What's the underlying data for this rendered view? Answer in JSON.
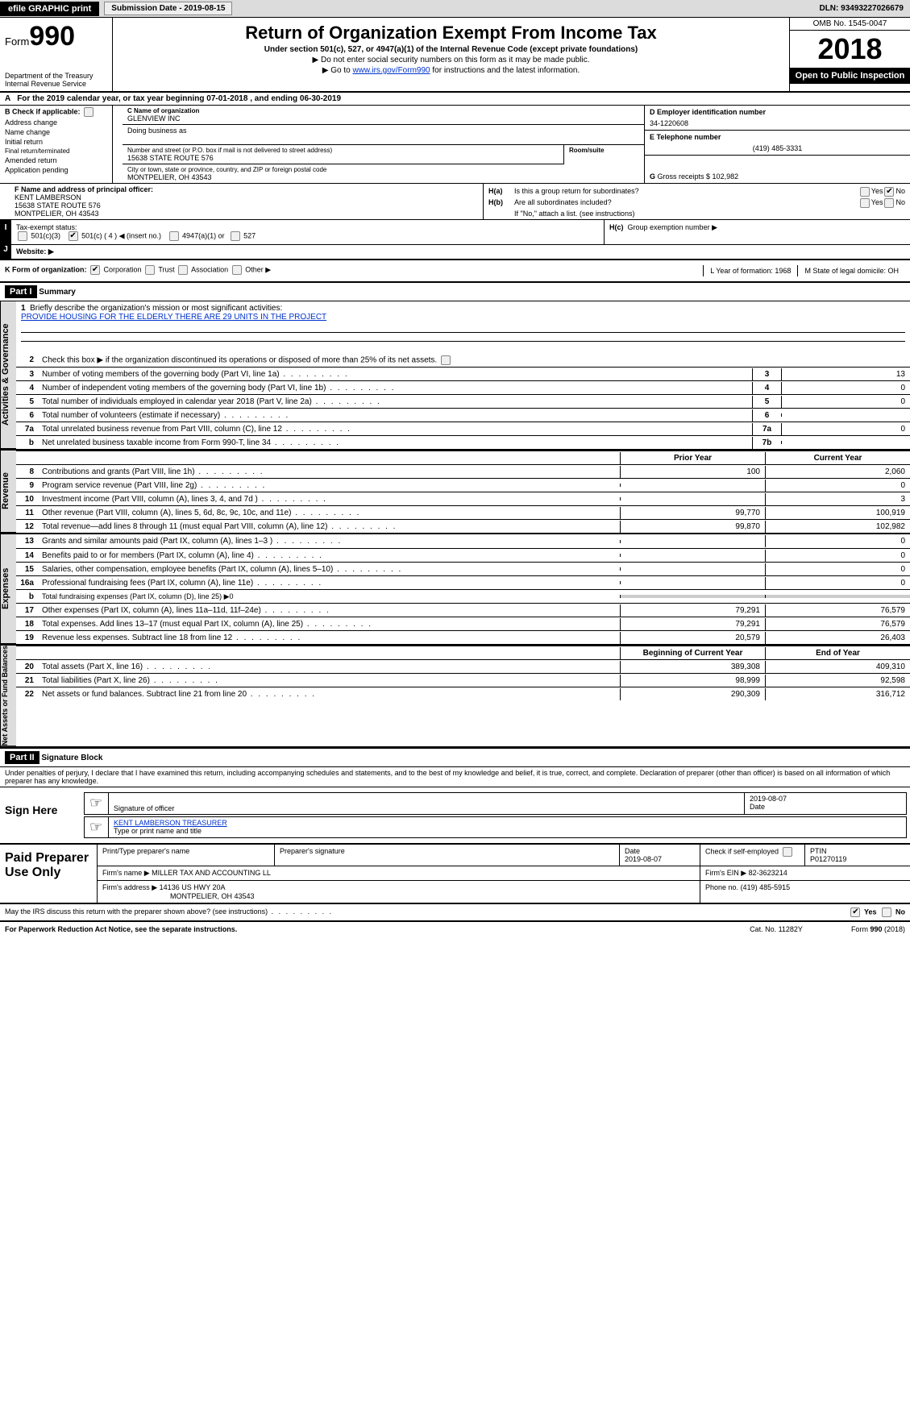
{
  "topbar": {
    "efile": "efile GRAPHIC print",
    "submission": "Submission Date - 2019-08-15",
    "dln": "DLN: 93493227026679"
  },
  "header": {
    "form_prefix": "Form",
    "form_num": "990",
    "dept1": "Department of the Treasury",
    "dept2": "Internal Revenue Service",
    "title": "Return of Organization Exempt From Income Tax",
    "subtitle": "Under section 501(c), 527, or 4947(a)(1) of the Internal Revenue Code (except private foundations)",
    "note1": "▶ Do not enter social security numbers on this form as it may be made public.",
    "note2_pre": "▶ Go to ",
    "note2_link": "www.irs.gov/Form990",
    "note2_post": " for instructions and the latest information.",
    "omb": "OMB No. 1545-0047",
    "year": "2018",
    "open": "Open to Public Inspection"
  },
  "rowA": "For the 2019 calendar year, or tax year beginning 07-01-2018     , and ending 06-30-2019",
  "secB": {
    "title": "Check if applicable:",
    "items": [
      "Address change",
      "Name change",
      "Initial return",
      "Final return/terminated",
      "Amended return",
      "Application pending"
    ]
  },
  "secC": {
    "name_lbl": "C Name of organization",
    "name": "GLENVIEW INC",
    "dba_lbl": "Doing business as",
    "addr_lbl": "Number and street (or P.O. box if mail is not delivered to street address)",
    "addr": "15638 STATE ROUTE 576",
    "room_lbl": "Room/suite",
    "city_lbl": "City or town, state or province, country, and ZIP or foreign postal code",
    "city": "MONTPELIER, OH  43543"
  },
  "secD": {
    "lbl": "D Employer identification number",
    "val": "34-1220608"
  },
  "secE": {
    "lbl": "E Telephone number",
    "val": "(419) 485-3331"
  },
  "secG": {
    "lbl": "G",
    "txt": "Gross receipts $ 102,982"
  },
  "secF": {
    "lbl": "F  Name and address of principal officer:",
    "name": "KENT LAMBERSON",
    "addr1": "15638 STATE ROUTE 576",
    "addr2": "MONTPELIER, OH  43543"
  },
  "secH": {
    "a_lbl": "H(a)",
    "a_txt": "Is this a group return for subordinates?",
    "b_lbl": "H(b)",
    "b_txt": "Are all subordinates included?",
    "b_note": "If \"No,\" attach a list. (see instructions)",
    "c_lbl": "H(c)",
    "c_txt": "Group exemption number ▶",
    "yes": "Yes",
    "no": "No"
  },
  "secI": {
    "lbl": "I",
    "txt": "Tax-exempt status:",
    "o1": "501(c)(3)",
    "o2": "501(c) ( 4 ) ◀ (insert no.)",
    "o3": "4947(a)(1) or",
    "o4": "527"
  },
  "secJ": {
    "lbl": "J",
    "txt": "Website: ▶"
  },
  "secK": {
    "txt": "K Form of organization:",
    "o1": "Corporation",
    "o2": "Trust",
    "o3": "Association",
    "o4": "Other ▶"
  },
  "secL": {
    "txt": "L Year of formation: 1968"
  },
  "secM": {
    "txt": "M State of legal domicile: OH"
  },
  "part1": {
    "hdr": "Part I",
    "title": "Summary"
  },
  "governance": {
    "tab": "Activities & Governance",
    "l1_lbl": "Briefly describe the organization's mission or most significant activities:",
    "l1_txt": "PROVIDE HOUSING FOR THE ELDERLY THERE ARE 29 UNITS IN THE PROJECT",
    "l2": "Check this box ▶      if the organization discontinued its operations or disposed of more than 25% of its net assets.",
    "rows": [
      {
        "n": "3",
        "lbl": "Number of voting members of the governing body (Part VI, line 1a)",
        "col": "3",
        "val": "13"
      },
      {
        "n": "4",
        "lbl": "Number of independent voting members of the governing body (Part VI, line 1b)",
        "col": "4",
        "val": "0"
      },
      {
        "n": "5",
        "lbl": "Total number of individuals employed in calendar year 2018 (Part V, line 2a)",
        "col": "5",
        "val": "0"
      },
      {
        "n": "6",
        "lbl": "Total number of volunteers (estimate if necessary)",
        "col": "6",
        "val": ""
      },
      {
        "n": "7a",
        "lbl": "Total unrelated business revenue from Part VIII, column (C), line 12",
        "col": "7a",
        "val": "0"
      },
      {
        "n": "b",
        "lbl": "Net unrelated business taxable income from Form 990-T, line 34",
        "col": "7b",
        "val": ""
      }
    ]
  },
  "colhdrs": {
    "prior": "Prior Year",
    "current": "Current Year",
    "boy": "Beginning of Current Year",
    "eoy": "End of Year"
  },
  "revenue": {
    "tab": "Revenue",
    "rows": [
      {
        "n": "8",
        "lbl": "Contributions and grants (Part VIII, line 1h)",
        "prior": "100",
        "curr": "2,060"
      },
      {
        "n": "9",
        "lbl": "Program service revenue (Part VIII, line 2g)",
        "prior": "",
        "curr": "0"
      },
      {
        "n": "10",
        "lbl": "Investment income (Part VIII, column (A), lines 3, 4, and 7d )",
        "prior": "",
        "curr": "3"
      },
      {
        "n": "11",
        "lbl": "Other revenue (Part VIII, column (A), lines 5, 6d, 8c, 9c, 10c, and 11e)",
        "prior": "99,770",
        "curr": "100,919"
      },
      {
        "n": "12",
        "lbl": "Total revenue—add lines 8 through 11 (must equal Part VIII, column (A), line 12)",
        "prior": "99,870",
        "curr": "102,982"
      }
    ]
  },
  "expenses": {
    "tab": "Expenses",
    "rows": [
      {
        "n": "13",
        "lbl": "Grants and similar amounts paid (Part IX, column (A), lines 1–3 )",
        "prior": "",
        "curr": "0"
      },
      {
        "n": "14",
        "lbl": "Benefits paid to or for members (Part IX, column (A), line 4)",
        "prior": "",
        "curr": "0"
      },
      {
        "n": "15",
        "lbl": "Salaries, other compensation, employee benefits (Part IX, column (A), lines 5–10)",
        "prior": "",
        "curr": "0"
      },
      {
        "n": "16a",
        "lbl": "Professional fundraising fees (Part IX, column (A), line 11e)",
        "prior": "",
        "curr": "0"
      },
      {
        "n": "b",
        "lbl": "Total fundraising expenses (Part IX, column (D), line 25) ▶0",
        "prior": "GRAY",
        "curr": "GRAY"
      },
      {
        "n": "17",
        "lbl": "Other expenses (Part IX, column (A), lines 11a–11d, 11f–24e)",
        "prior": "79,291",
        "curr": "76,579"
      },
      {
        "n": "18",
        "lbl": "Total expenses. Add lines 13–17 (must equal Part IX, column (A), line 25)",
        "prior": "79,291",
        "curr": "76,579"
      },
      {
        "n": "19",
        "lbl": "Revenue less expenses. Subtract line 18 from line 12",
        "prior": "20,579",
        "curr": "26,403"
      }
    ]
  },
  "netassets": {
    "tab": "Net Assets or Fund Balances",
    "rows": [
      {
        "n": "20",
        "lbl": "Total assets (Part X, line 16)",
        "prior": "389,308",
        "curr": "409,310"
      },
      {
        "n": "21",
        "lbl": "Total liabilities (Part X, line 26)",
        "prior": "98,999",
        "curr": "92,598"
      },
      {
        "n": "22",
        "lbl": "Net assets or fund balances. Subtract line 21 from line 20",
        "prior": "290,309",
        "curr": "316,712"
      }
    ]
  },
  "part2": {
    "hdr": "Part II",
    "title": "Signature Block"
  },
  "perjury": "Under penalties of perjury, I declare that I have examined this return, including accompanying schedules and statements, and to the best of my knowledge and belief, it is true, correct, and complete. Declaration of preparer (other than officer) is based on all information of which preparer has any knowledge.",
  "sign": {
    "label": "Sign Here",
    "sig_lbl": "Signature of officer",
    "date": "2019-08-07",
    "date_lbl": "Date",
    "name": "KENT LAMBERSON  TREASURER",
    "name_lbl": "Type or print name and title"
  },
  "paid": {
    "label": "Paid Preparer Use Only",
    "h1": "Print/Type preparer's name",
    "h2": "Preparer's signature",
    "h3": "Date",
    "h3v": "2019-08-07",
    "h4": "Check       if self-employed",
    "h5": "PTIN",
    "h5v": "P01270119",
    "firm_lbl": "Firm's name    ▶",
    "firm": "MILLER TAX AND ACCOUNTING LL",
    "ein_lbl": "Firm's EIN ▶",
    "ein": "82-3623214",
    "addr_lbl": "Firm's address ▶",
    "addr1": "14136 US HWY 20A",
    "addr2": "MONTPELIER, OH  43543",
    "phone_lbl": "Phone no.",
    "phone": "(419) 485-5915"
  },
  "footer": {
    "discuss": "May the IRS discuss this return with the preparer shown above? (see instructions)",
    "yes": "Yes",
    "no": "No",
    "paperwork": "For Paperwork Reduction Act Notice, see the separate instructions.",
    "cat": "Cat. No. 11282Y",
    "form": "Form 990 (2018)"
  }
}
